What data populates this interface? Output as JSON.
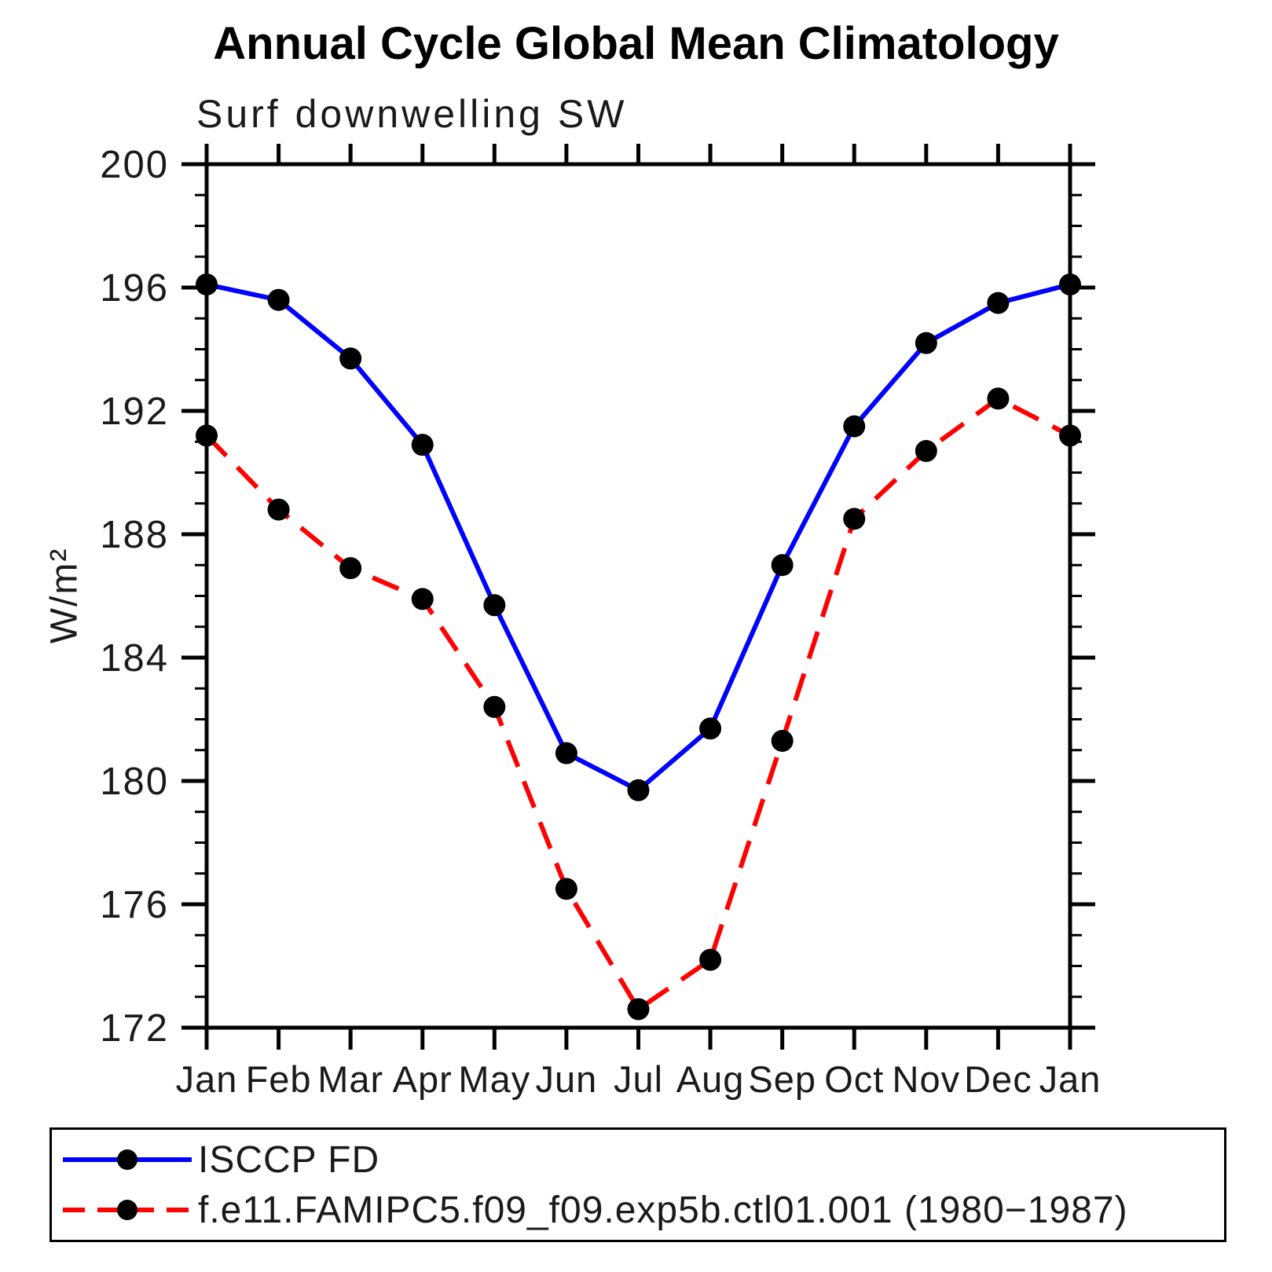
{
  "page": {
    "background": "#ffffff"
  },
  "chart_data": {
    "type": "line",
    "title": "Annual Cycle Global Mean Climatology",
    "subtitle": "Surf downwelling SW",
    "ylabel": "W/m²",
    "xlabel": "",
    "x_categories": [
      "Jan",
      "Feb",
      "Mar",
      "Apr",
      "May",
      "Jun",
      "Jul",
      "Aug",
      "Sep",
      "Oct",
      "Nov",
      "Dec",
      "Jan"
    ],
    "ylim": [
      172,
      200
    ],
    "y_major_step": 4,
    "y_minor_step": 1,
    "y_tick_labels": [
      "200",
      "196",
      "192",
      "188",
      "184",
      "180",
      "176",
      "172"
    ],
    "grid": false,
    "legend_position": "bottom-left",
    "axis_color": "#000000",
    "marker_color": "#000000",
    "series": [
      {
        "name": "ISCCP FD",
        "color": "#0000ff",
        "line_style": "solid",
        "marker": "filled-circle",
        "values": [
          196.1,
          195.6,
          193.7,
          190.9,
          185.7,
          180.9,
          179.7,
          181.7,
          187.0,
          191.5,
          194.2,
          195.5,
          196.1
        ]
      },
      {
        "name": "f.e11.FAMIPC5.f09_f09.exp5b.ctl01.001 (1980−1987)",
        "color": "#ff0000",
        "line_style": "dashed",
        "marker": "filled-circle",
        "values": [
          191.2,
          188.8,
          186.9,
          185.9,
          182.4,
          176.5,
          172.6,
          174.2,
          181.3,
          188.5,
          190.7,
          192.4,
          191.2
        ]
      }
    ]
  }
}
